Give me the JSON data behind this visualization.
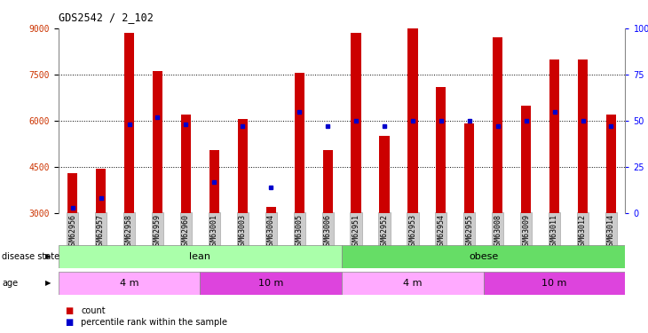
{
  "title": "GDS2542 / 2_102",
  "samples": [
    "GSM62956",
    "GSM62957",
    "GSM62958",
    "GSM62959",
    "GSM62960",
    "GSM63001",
    "GSM63003",
    "GSM63004",
    "GSM63005",
    "GSM63006",
    "GSM62951",
    "GSM62952",
    "GSM62953",
    "GSM62954",
    "GSM62955",
    "GSM63008",
    "GSM63009",
    "GSM63011",
    "GSM63012",
    "GSM63014"
  ],
  "counts": [
    4300,
    4450,
    8850,
    7600,
    6200,
    5050,
    6050,
    3200,
    7550,
    5050,
    8850,
    5500,
    9000,
    7100,
    5900,
    8700,
    6500,
    8000,
    8000,
    6200
  ],
  "percentiles": [
    3,
    8,
    48,
    52,
    48,
    17,
    47,
    14,
    55,
    47,
    50,
    47,
    50,
    50,
    50,
    47,
    50,
    55,
    50,
    47
  ],
  "ymin": 3000,
  "ymax": 9000,
  "yticks": [
    3000,
    4500,
    6000,
    7500,
    9000
  ],
  "right_yticks": [
    0,
    25,
    50,
    75,
    100
  ],
  "bar_color": "#cc0000",
  "dot_color": "#0000cc",
  "disease_state_color_lean": "#aaffaa",
  "disease_state_color_obese": "#66dd66",
  "age_color_light": "#ffaaff",
  "age_color_dark": "#dd44dd",
  "background_color": "#ffffff",
  "tick_bg": "#cccccc",
  "legend_count_color": "#cc0000",
  "legend_dot_color": "#0000cc"
}
